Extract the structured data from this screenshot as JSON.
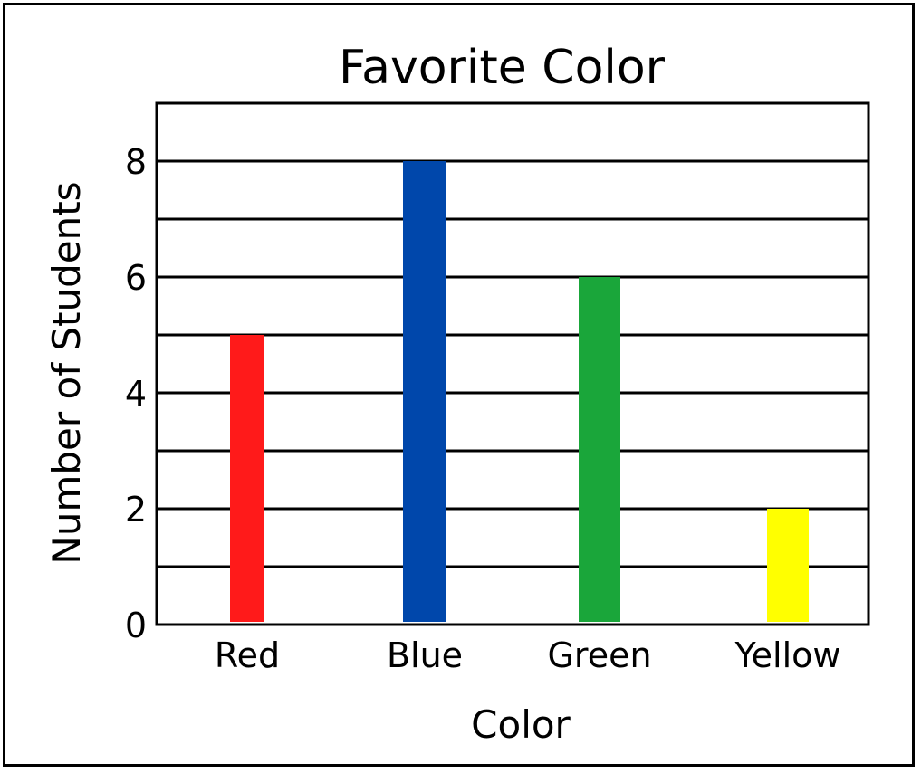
{
  "chart_data": {
    "type": "bar",
    "title": "Favorite Color",
    "xlabel": "Color",
    "ylabel": "Number of Students",
    "categories": [
      "Red",
      "Blue",
      "Green",
      "Yellow"
    ],
    "values": [
      5,
      8,
      6,
      2
    ],
    "bar_colors": [
      "#ff1a1a",
      "#0047ab",
      "#1aa63a",
      "#ffff00"
    ],
    "ylim": [
      0,
      9
    ],
    "yticks": [
      0,
      2,
      4,
      6,
      8
    ],
    "ytick_labels": [
      "0",
      "2",
      "4",
      "6",
      "8"
    ],
    "gridlines": [
      1,
      2,
      3,
      4,
      5,
      6,
      7,
      8
    ],
    "grid": true,
    "legend": "none"
  }
}
